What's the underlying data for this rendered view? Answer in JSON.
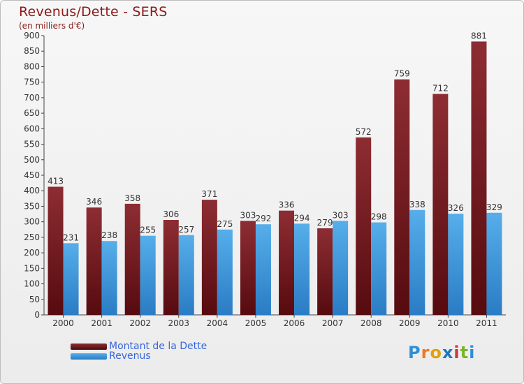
{
  "title": "Revenus/Dette - SERS",
  "subtitle": "(en milliers d'€)",
  "colors": {
    "debt": "#7a1f24",
    "revenue": "#3f97dd",
    "text": "#8b1a1a",
    "legend_text": "#3366dd"
  },
  "legend": {
    "debt_label": "Montant de la Dette",
    "revenue_label": "Revenus"
  },
  "logo": {
    "text": "Proxiti",
    "letters": [
      "P",
      "r",
      "o",
      "x",
      "i",
      "t",
      "i"
    ]
  },
  "chart_data": {
    "type": "bar",
    "categories": [
      "2000",
      "2001",
      "2002",
      "2003",
      "2004",
      "2005",
      "2006",
      "2007",
      "2008",
      "2009",
      "2010",
      "2011"
    ],
    "series": [
      {
        "name": "Montant de la Dette",
        "values": [
          413,
          346,
          358,
          306,
          371,
          303,
          336,
          279,
          572,
          759,
          712,
          881
        ]
      },
      {
        "name": "Revenus",
        "values": [
          231,
          238,
          255,
          257,
          275,
          292,
          294,
          303,
          298,
          338,
          326,
          329
        ]
      }
    ],
    "ylim": [
      0,
      900
    ],
    "yticks": [
      0,
      50,
      100,
      150,
      200,
      250,
      300,
      350,
      400,
      450,
      500,
      550,
      600,
      650,
      700,
      750,
      800,
      850,
      900
    ],
    "grid": false,
    "legend_position": "bottom-left"
  }
}
